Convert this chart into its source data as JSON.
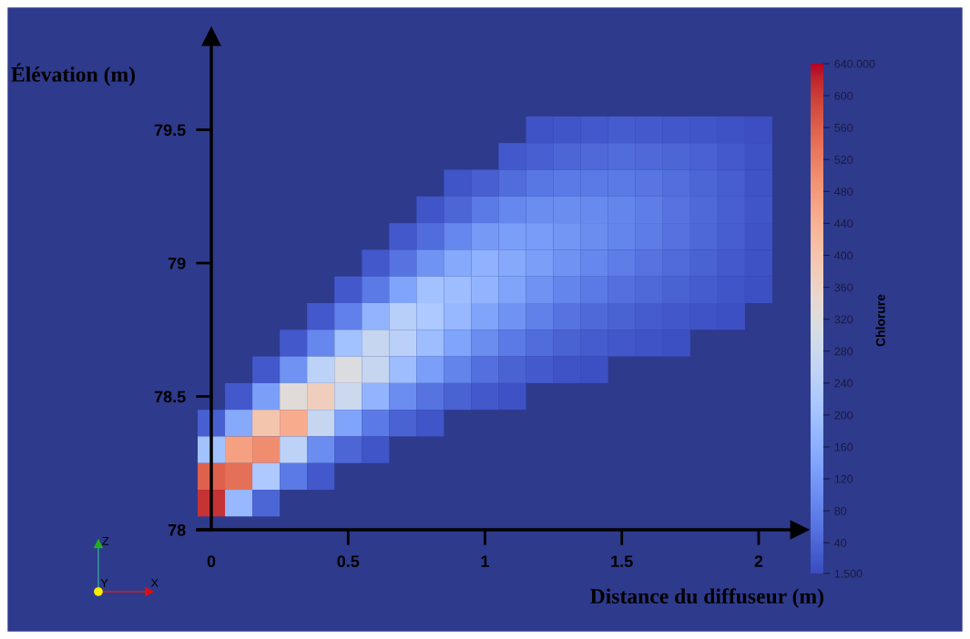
{
  "chart_data": {
    "type": "heatmap",
    "xlabel": "Distance du diffuseur (m)",
    "ylabel": "Élévation (m)",
    "clabel": "Chlorure",
    "x": [
      0,
      0.1,
      0.2,
      0.3,
      0.4,
      0.5,
      0.6,
      0.7,
      0.8,
      0.9,
      1.0,
      1.1,
      1.2,
      1.3,
      1.4,
      1.5,
      1.6,
      1.7,
      1.8,
      1.9,
      2.0
    ],
    "y": [
      79.5,
      79.4,
      79.3,
      79.2,
      79.1,
      79.0,
      78.9,
      78.8,
      78.7,
      78.6,
      78.5,
      78.4,
      78.3,
      78.2,
      78.1
    ],
    "cells": [
      [
        null,
        null,
        null,
        null,
        null,
        null,
        null,
        null,
        null,
        null,
        null,
        null,
        13,
        15,
        20,
        25,
        22,
        18,
        14,
        9,
        5
      ],
      [
        null,
        null,
        null,
        null,
        null,
        null,
        null,
        null,
        null,
        null,
        null,
        20,
        30,
        40,
        45,
        50,
        45,
        40,
        32,
        22,
        11
      ],
      [
        null,
        null,
        null,
        null,
        null,
        null,
        null,
        null,
        null,
        15,
        30,
        50,
        65,
        70,
        70,
        70,
        62,
        52,
        40,
        27,
        13
      ],
      [
        null,
        null,
        null,
        null,
        null,
        null,
        null,
        null,
        15,
        40,
        70,
        90,
        100,
        100,
        95,
        88,
        74,
        60,
        45,
        30,
        15
      ],
      [
        null,
        null,
        null,
        null,
        null,
        null,
        null,
        20,
        50,
        90,
        120,
        130,
        125,
        115,
        100,
        88,
        72,
        57,
        42,
        28,
        13
      ],
      [
        null,
        null,
        null,
        null,
        null,
        null,
        20,
        60,
        110,
        150,
        165,
        150,
        130,
        110,
        90,
        75,
        60,
        47,
        35,
        23,
        11
      ],
      [
        null,
        null,
        null,
        null,
        null,
        20,
        70,
        140,
        200,
        190,
        170,
        140,
        110,
        88,
        70,
        55,
        44,
        34,
        25,
        16,
        8
      ],
      [
        null,
        null,
        null,
        null,
        20,
        80,
        170,
        240,
        220,
        180,
        140,
        110,
        80,
        60,
        45,
        35,
        26,
        18,
        12,
        7,
        null
      ],
      [
        null,
        null,
        null,
        20,
        90,
        200,
        270,
        245,
        190,
        140,
        100,
        70,
        50,
        35,
        25,
        18,
        12,
        7,
        null,
        null,
        null
      ],
      [
        null,
        null,
        20,
        110,
        250,
        315,
        270,
        190,
        130,
        85,
        55,
        35,
        22,
        13,
        7,
        null,
        null,
        null,
        null,
        null,
        null
      ],
      [
        null,
        20,
        130,
        330,
        375,
        280,
        170,
        100,
        60,
        35,
        20,
        10,
        null,
        null,
        null,
        null,
        null,
        null,
        null,
        null,
        null
      ],
      [
        30,
        150,
        400,
        450,
        270,
        140,
        70,
        35,
        15,
        null,
        null,
        null,
        null,
        null,
        null,
        null,
        null,
        null,
        null,
        null,
        null
      ],
      [
        200,
        470,
        500,
        250,
        100,
        40,
        15,
        null,
        null,
        null,
        null,
        null,
        null,
        null,
        null,
        null,
        null,
        null,
        null,
        null,
        null
      ],
      [
        560,
        540,
        220,
        70,
        20,
        null,
        null,
        null,
        null,
        null,
        null,
        null,
        null,
        null,
        null,
        null,
        null,
        null,
        null,
        null,
        null
      ],
      [
        610,
        180,
        40,
        null,
        null,
        null,
        null,
        null,
        null,
        null,
        null,
        null,
        null,
        null,
        null,
        null,
        null,
        null,
        null,
        null,
        null
      ]
    ],
    "xlim": [
      -0.05,
      2.15
    ],
    "ylim": [
      78.0,
      79.85
    ],
    "xticks": [
      0,
      0.5,
      1,
      1.5,
      2
    ],
    "yticks": [
      78,
      78.5,
      79,
      79.5
    ],
    "clim": [
      1.5,
      640
    ],
    "cticks": [
      {
        "value": 1.5,
        "label": "1.500"
      },
      40,
      80,
      120,
      160,
      200,
      240,
      280,
      320,
      360,
      400,
      440,
      480,
      520,
      560,
      600,
      {
        "value": 640,
        "label": "640.000"
      }
    ],
    "annotations": [
      "Z",
      "Y",
      "X"
    ],
    "grid": false,
    "legend": false
  }
}
